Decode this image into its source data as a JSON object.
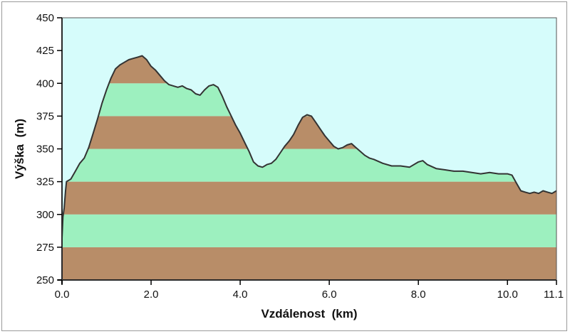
{
  "chart_data": {
    "type": "area",
    "title": "",
    "xlabel": "Vzdálenost  (km)",
    "ylabel": "Výška  (m)",
    "xlim": [
      0,
      11.1
    ],
    "ylim": [
      250,
      450
    ],
    "x_ticks": [
      0.0,
      2.0,
      4.0,
      6.0,
      8.0,
      10.0,
      11.1
    ],
    "x_tick_labels": [
      "0.0",
      "2.0",
      "4.0",
      "6.0",
      "8.0",
      "10.0",
      "11.1"
    ],
    "y_ticks": [
      250,
      275,
      300,
      325,
      350,
      375,
      400,
      425,
      450
    ],
    "y_tick_labels": [
      "250",
      "275",
      "300",
      "325",
      "350",
      "375",
      "400",
      "425",
      "450"
    ],
    "grid": false,
    "legend": "none",
    "colors": {
      "sky": "#d6fcfb",
      "band_brown": "#b88d68",
      "band_green": "#9df0bf",
      "profile_line": "#333333"
    },
    "band_height": 25,
    "x": [
      0.0,
      0.02,
      0.05,
      0.08,
      0.1,
      0.15,
      0.2,
      0.3,
      0.4,
      0.5,
      0.6,
      0.7,
      0.8,
      0.9,
      1.0,
      1.1,
      1.2,
      1.3,
      1.4,
      1.5,
      1.6,
      1.7,
      1.8,
      1.9,
      2.0,
      2.1,
      2.2,
      2.3,
      2.4,
      2.5,
      2.6,
      2.7,
      2.8,
      2.9,
      3.0,
      3.1,
      3.2,
      3.3,
      3.4,
      3.5,
      3.6,
      3.7,
      3.8,
      3.9,
      4.0,
      4.1,
      4.2,
      4.3,
      4.4,
      4.5,
      4.6,
      4.7,
      4.8,
      4.9,
      5.0,
      5.1,
      5.2,
      5.3,
      5.4,
      5.5,
      5.6,
      5.7,
      5.8,
      5.9,
      6.0,
      6.1,
      6.2,
      6.3,
      6.4,
      6.5,
      6.6,
      6.7,
      6.8,
      6.9,
      7.0,
      7.2,
      7.4,
      7.6,
      7.8,
      8.0,
      8.1,
      8.2,
      8.4,
      8.6,
      8.8,
      9.0,
      9.2,
      9.4,
      9.6,
      9.8,
      10.0,
      10.1,
      10.2,
      10.3,
      10.4,
      10.5,
      10.6,
      10.7,
      10.8,
      10.9,
      11.0,
      11.1
    ],
    "y": [
      282,
      298,
      305,
      318,
      325,
      326,
      327,
      333,
      339,
      343,
      351,
      362,
      373,
      385,
      395,
      404,
      411,
      414,
      416,
      418,
      419,
      420,
      421,
      418,
      413,
      410,
      406,
      402,
      399,
      398,
      397,
      398,
      396,
      395,
      392,
      391,
      395,
      398,
      399,
      397,
      390,
      382,
      375,
      368,
      362,
      355,
      348,
      340,
      337,
      336,
      338,
      339,
      342,
      347,
      352,
      356,
      361,
      368,
      374,
      376,
      375,
      370,
      365,
      360,
      356,
      352,
      350,
      351,
      353,
      354,
      351,
      348,
      345,
      343,
      342,
      339,
      337,
      337,
      336,
      340,
      341,
      338,
      335,
      334,
      333,
      333,
      332,
      331,
      332,
      331,
      331,
      330,
      324,
      318,
      317,
      316,
      317,
      316,
      318,
      317,
      316,
      318
    ]
  }
}
